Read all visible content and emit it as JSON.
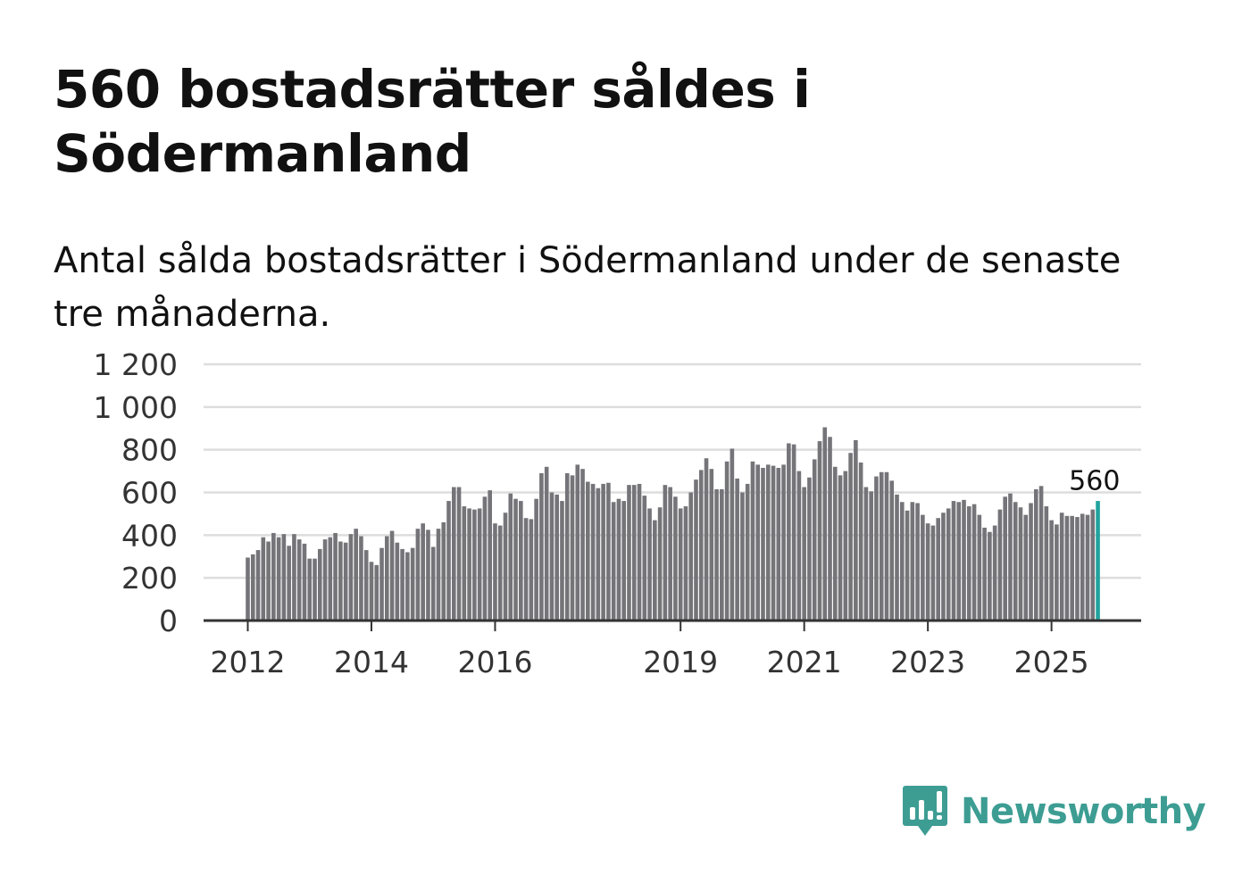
{
  "header": {
    "title": "560 bostadsrätter såldes i Södermanland",
    "subtitle": "Antal sålda bostadsrätter i Södermanland under de senaste tre månaderna."
  },
  "brand": {
    "name": "Newsworthy",
    "color": "#3d9d93",
    "icon": "newsworthy-logo-icon"
  },
  "colors": {
    "bar": "#747479",
    "highlight": "#20a39e",
    "grid": "#dddddd",
    "axis": "#333333"
  },
  "chart_data": {
    "type": "bar",
    "title": "560 bostadsrätter såldes i Södermanland",
    "xlabel": "",
    "ylabel": "",
    "ylim": [
      0,
      1200
    ],
    "yticks": [
      0,
      200,
      400,
      600,
      800,
      1000,
      1200
    ],
    "ytick_labels": [
      "0",
      "200",
      "400",
      "600",
      "800",
      "1 000",
      "1 200"
    ],
    "xticks": [
      {
        "label": "2012",
        "index": 0
      },
      {
        "label": "2014",
        "index": 24
      },
      {
        "label": "2016",
        "index": 48
      },
      {
        "label": "2019",
        "index": 84
      },
      {
        "label": "2021",
        "index": 108
      },
      {
        "label": "2023",
        "index": 132
      },
      {
        "label": "2025",
        "index": 156
      }
    ],
    "annotation": {
      "text": "560",
      "index": 164
    },
    "start": "2012-01",
    "interval": "month",
    "values": [
      295,
      310,
      330,
      390,
      370,
      410,
      390,
      405,
      350,
      405,
      380,
      360,
      290,
      290,
      335,
      380,
      390,
      410,
      370,
      365,
      405,
      430,
      395,
      330,
      275,
      260,
      340,
      395,
      420,
      365,
      335,
      320,
      340,
      430,
      455,
      425,
      345,
      430,
      460,
      560,
      625,
      625,
      535,
      525,
      520,
      525,
      580,
      610,
      455,
      445,
      505,
      595,
      570,
      560,
      480,
      475,
      570,
      690,
      720,
      600,
      590,
      560,
      690,
      680,
      730,
      710,
      650,
      640,
      620,
      640,
      645,
      555,
      570,
      560,
      635,
      635,
      640,
      585,
      525,
      470,
      530,
      635,
      625,
      580,
      525,
      535,
      600,
      660,
      705,
      760,
      710,
      615,
      615,
      745,
      805,
      665,
      600,
      640,
      745,
      730,
      715,
      730,
      725,
      715,
      730,
      830,
      825,
      700,
      625,
      670,
      755,
      840,
      905,
      860,
      720,
      680,
      700,
      785,
      845,
      740,
      625,
      605,
      675,
      695,
      695,
      655,
      590,
      555,
      515,
      555,
      550,
      495,
      455,
      445,
      480,
      505,
      525,
      560,
      555,
      565,
      535,
      545,
      495,
      435,
      415,
      445,
      520,
      580,
      595,
      555,
      530,
      495,
      550,
      615,
      630,
      535,
      470,
      450,
      505,
      490,
      490,
      485,
      500,
      495,
      520,
      560
    ]
  }
}
